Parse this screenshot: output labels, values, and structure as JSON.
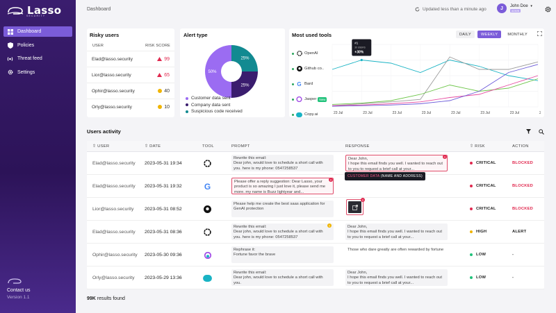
{
  "brand": {
    "name": "Lasso",
    "sub": "SECURITY"
  },
  "nav": [
    {
      "label": "Dashboard",
      "icon": "dashboard-icon",
      "active": true
    },
    {
      "label": "Policies",
      "icon": "shield-icon",
      "active": false
    },
    {
      "label": "Threat feed",
      "icon": "broadcast-icon",
      "active": false
    },
    {
      "label": "Settings",
      "icon": "gear-icon",
      "active": false
    }
  ],
  "sidebar_footer": {
    "contact": "Contact us",
    "version": "Version 1.1"
  },
  "topbar": {
    "breadcrumb": "Dashboard",
    "updated": "Updated less than a minute ago",
    "user_name": "John Doe",
    "user_initial": "J",
    "user_badge": "ADMIN"
  },
  "risky_users": {
    "title": "Risky users",
    "col_user": "USER",
    "col_score": "RISK SCORE",
    "rows": [
      {
        "user": "Elad@lasso.security",
        "score": "99",
        "level": "high"
      },
      {
        "user": "Lior@lasso.security",
        "score": "65",
        "level": "high"
      },
      {
        "user": "Ophir@lasso.security",
        "score": "40",
        "level": "medium"
      },
      {
        "user": "Orly@lasso.security",
        "score": "10",
        "level": "medium"
      }
    ]
  },
  "alert_type": {
    "title": "Alert type",
    "legend": [
      {
        "label": "Customer data sent",
        "color": "#9b6cf2"
      },
      {
        "label": "Company data sent",
        "color": "#3a1d6e"
      },
      {
        "label": "Suspicious code received",
        "color": "#128a91"
      }
    ],
    "chart_data": {
      "type": "pie",
      "categories": [
        "Customer data sent",
        "Company data sent",
        "Suspicious code received"
      ],
      "values": [
        50,
        25,
        25
      ],
      "data_labels": [
        "50%",
        "25%",
        "25%"
      ]
    }
  },
  "tools": {
    "title": "Most used tools",
    "periods": [
      "DAILY",
      "WEEKLY",
      "MONTHLY"
    ],
    "active_period": "WEEKLY",
    "list": [
      {
        "name": "OpenAI",
        "icon": "openai-icon"
      },
      {
        "name": "Github co..",
        "icon": "github-icon"
      },
      {
        "name": "Bard",
        "icon": "google-icon"
      },
      {
        "name": "Jasper",
        "icon": "jasper-icon",
        "badge": "New"
      },
      {
        "name": "Copy.ai",
        "icon": "copyai-icon"
      }
    ],
    "tooltip": {
      "rank": "#1",
      "label": "30 USERS",
      "change": "+30%"
    },
    "chart_data": {
      "type": "line",
      "categories": [
        "23 Jul",
        "23 Jul",
        "23 Jul",
        "23 Jul",
        "23 Jul",
        "23 Jul",
        "23 Jul",
        "23 Jul"
      ],
      "ylim": [
        0,
        100
      ],
      "grid": true,
      "series": [
        {
          "color": "#19b3c4",
          "values": [
            60,
            75,
            70,
            55,
            75,
            65,
            50,
            42
          ]
        },
        {
          "color": "#9b9b9b",
          "values": [
            2,
            5,
            8,
            12,
            80,
            60,
            60,
            72
          ]
        },
        {
          "color": "#6ec64a",
          "values": [
            4,
            6,
            10,
            20,
            35,
            25,
            30,
            45
          ]
        },
        {
          "color": "#e64aa0",
          "values": [
            2,
            3,
            5,
            8,
            15,
            20,
            35,
            50
          ]
        },
        {
          "color": "#6a5ad9",
          "values": [
            1,
            2,
            3,
            5,
            10,
            25,
            55,
            68
          ]
        }
      ]
    }
  },
  "activity": {
    "title": "Users activity",
    "columns": {
      "user": "USER",
      "date": "DATE",
      "tool": "TOOL",
      "prompt": "PROMPT",
      "response": "RESPONSE",
      "risk": "RISK",
      "action": "ACTION"
    },
    "rows": [
      {
        "user": "Elad@lasso.security",
        "date": "2023-05-31 19:34",
        "tool": "openai-icon",
        "prompt": "Rewrite this email:\nDear john, would love to schedule a short call with you. here is my phone: 0547258537",
        "response": "Dear John,\nI hope this email finds you well. I wanted to reach out to you to request a brief call at your...",
        "risk": "CRITICAL",
        "risk_color": "#e0294f",
        "action": "BLOCKED",
        "action_color": "#e0294f"
      },
      {
        "user": "Elad@lasso.security",
        "date": "2023-05-31 19:32",
        "tool": "google-icon",
        "prompt": "Please offer a reply suggestion: Dear Lasso, your product is so amazing I just love it, please send me more. my name is Buzz lightyear and...",
        "response": "",
        "risk": "CRITICAL",
        "risk_color": "#e0294f",
        "action": "BLOCKED",
        "action_color": "#e0294f"
      },
      {
        "user": "Lior@lasso.security",
        "date": "2023-05-31 08:52",
        "tool": "github-icon",
        "prompt": "Please help me create the best saas application for GenAI protection",
        "response": "",
        "risk": "CRITICAL",
        "risk_color": "#e0294f",
        "action": "BLOCKED",
        "action_color": "#e0294f"
      },
      {
        "user": "Elad@lasso.security",
        "date": "2023-05-31 08:36",
        "tool": "openai-icon",
        "prompt": "Rewrite this email:\nDear john, would love to schedule a short call with you. here is my phone: 0547258537",
        "response": "Dear John,\nI hope this email finds you well. I wanted to reach out to you to request a brief call at your...",
        "risk": "HIGH",
        "risk_color": "#f0b400",
        "action": "ALERT",
        "action_color": "#222"
      },
      {
        "user": "Ophir@lasso.security",
        "date": "2023-05-30 09:36",
        "tool": "jasper-icon",
        "prompt": "Rephrase it:\nFortune favor the brave",
        "response": "Those who dare greatly are often rewarded by fortune",
        "risk": "LOW",
        "risk_color": "#20c27a",
        "action": "-",
        "action_color": "#222"
      },
      {
        "user": "Orly@lasso.security",
        "date": "2023-05-29 13:36",
        "tool": "copyai-icon",
        "prompt": "Rewrite this email:\nDear john, would love to schedule a short call with you.",
        "response": "Dear John,\nI hope this email finds you well. I wanted to reach out to you to request a brief call at your...",
        "risk": "LOW",
        "risk_color": "#20c27a",
        "action": "-",
        "action_color": "#222"
      }
    ],
    "tooltip": {
      "highlight": "CUSTOMER DATA",
      "rest": "(NAME AND ADDRESS)"
    },
    "results_count": "99K",
    "results_label": "results found"
  }
}
